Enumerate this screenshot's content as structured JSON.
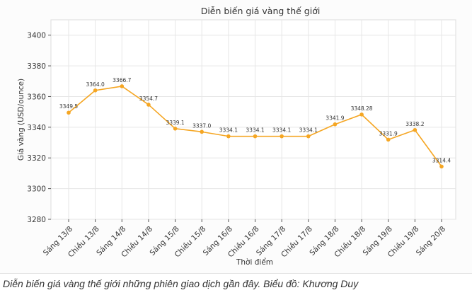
{
  "chart_data": {
    "type": "line",
    "title": "Diễn biến giá vàng thế giới",
    "xlabel": "Thời điểm",
    "ylabel": "Giá vàng (USD/ounce)",
    "ylim": [
      3280,
      3410
    ],
    "yticks": [
      3280,
      3300,
      3320,
      3340,
      3360,
      3380,
      3400
    ],
    "grid": true,
    "categories": [
      "Sáng 13/8",
      "Chiều 13/8",
      "Sáng 14/8",
      "Chiều 14/8",
      "Sáng 15/8",
      "Chiều 15/8",
      "Sáng 16/8",
      "Chiều 16/8",
      "Sáng 17/8",
      "Chiều 17/8",
      "Sáng 18/8",
      "Chiều 18/8",
      "Sáng 19/8",
      "Chiều 19/8",
      "Sáng 20/8"
    ],
    "values": [
      3349.5,
      3364.0,
      3366.7,
      3354.7,
      3339.1,
      3337.0,
      3334.1,
      3334.1,
      3334.1,
      3334.1,
      3341.9,
      3348.28,
      3331.9,
      3338.2,
      3314.4
    ],
    "labels": [
      "3349.5",
      "3364.0",
      "3366.7",
      "3354.7",
      "3339.1",
      "3337.0",
      "3334.1",
      "3334.1",
      "3334.1",
      "3334.1",
      "3341.9",
      "3348.28",
      "3331.9",
      "3338.2",
      "3314.4"
    ],
    "colors": {
      "line": "#F5A623",
      "grid": "#e6e6e6",
      "text": "#333333"
    }
  },
  "caption": "Diễn biến giá vàng thế giới những phiên giao dịch gần đây. Biểu đồ: Khương Duy"
}
